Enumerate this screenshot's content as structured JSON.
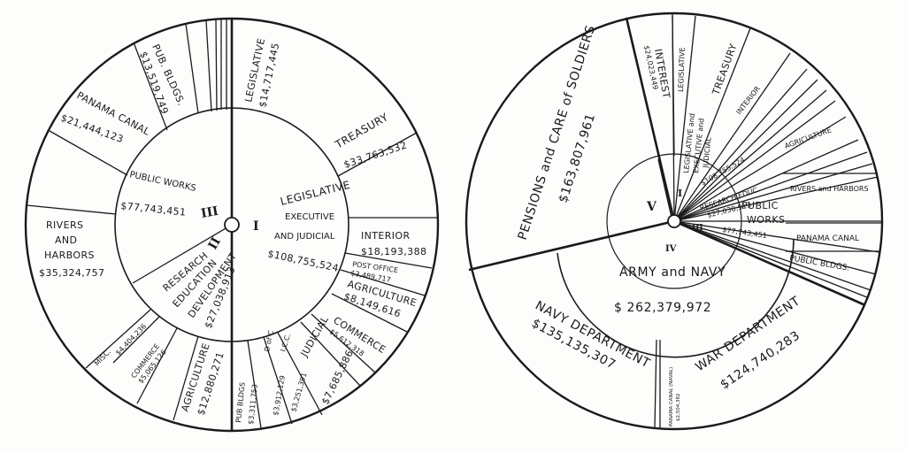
{
  "chart_data": [
    {
      "type": "pie",
      "categories": {
        "I": {
          "roman": "I",
          "title_lines": [
            "LEGISLATIVE",
            "EXECUTIVE",
            "AND JUDICIAL"
          ],
          "amount": "$108,755,524",
          "items": [
            {
              "label": "LEGISLATIVE",
              "amount": "$14,717,445"
            },
            {
              "label": "TREASURY",
              "amount": "$33,763,532"
            },
            {
              "label": "INTERIOR",
              "amount": "$18,193,388"
            },
            {
              "label": "POST OFFICE",
              "amount": "$3,489,717"
            },
            {
              "label": "AGRICULTURE",
              "amount": "$8,149,616"
            },
            {
              "label": "COMMERCE",
              "amount": "$5,612,318"
            },
            {
              "label": "JUDICIAL",
              "amount": "$7,685,886"
            },
            {
              "label": "I.C.C.",
              "amount": "$3,251,391"
            },
            {
              "label": "D of C",
              "amount": "$3,912,129"
            }
          ]
        },
        "II": {
          "roman": "II",
          "title_lines": [
            "RESEARCH",
            "EDUCATION",
            "DEVELOPMENT"
          ],
          "amount": "$27,038,913",
          "items": [
            {
              "label": "PUB BLDGS",
              "amount": "$3,311,753"
            },
            {
              "label": "AGRICULTURE",
              "amount": "$12,880,271"
            },
            {
              "label": "COMMERCE",
              "amount": "$5,065,126"
            },
            {
              "label": "MISC.",
              "amount": "$4,404,236"
            }
          ]
        },
        "III": {
          "roman": "III",
          "title_lines": [
            "PUBLIC WORKS"
          ],
          "amount": "$77,743,451",
          "items": [
            {
              "label": "RIVERS AND HARBORS",
              "amount": "$35,324,757"
            },
            {
              "label": "PANAMA CANAL",
              "amount": "$21,444,123"
            },
            {
              "label": "PUB. BLDGS.",
              "amount": "$13,519,749"
            }
          ]
        }
      },
      "right": {
        "pensions": {
          "line1": "PENSIONS and CARE of SOLDIERS",
          "amount": "$163,807,961",
          "roman": "V"
        },
        "interest": {
          "label": "INTEREST",
          "amount": "$24,023,449"
        },
        "army_navy": {
          "roman": "IV",
          "label": "ARMY and NAVY",
          "amount": "$ 262,379,972"
        },
        "navy": {
          "label": "NAVY DEPARTMENT",
          "amount": "$135,135,307"
        },
        "war": {
          "label": "WAR DEPARTMENT",
          "amount": "$124,740,283"
        },
        "naval_misc": {
          "label": "PANAMA CANAL (NAVAL)",
          "amount": "$2,504,382"
        },
        "legislative": {
          "label": "LEGISLATIVE"
        },
        "treasury": {
          "label": "TREASURY"
        },
        "interior": {
          "label": "INTERIOR"
        },
        "agriculture": {
          "label": "AGRICULTURE"
        },
        "legis_exec": {
          "roman": "I",
          "label_lines": [
            "LEGISLATIVE and",
            "EXECUTIVE and",
            "JUDICIAL"
          ],
          "amount": "$108,755,524"
        },
        "research": {
          "roman": "II",
          "label": "RESEARCH EDUC.",
          "amount": "$27,038,913"
        },
        "public_works": {
          "roman": "III",
          "label_lines": [
            "PUBLIC",
            "WORKS"
          ],
          "amount": "$77,743,451"
        },
        "rivers": {
          "label": "RIVERS and HARBORS"
        },
        "panama": {
          "label": "PANAMA CANAL"
        },
        "pub_bldgs": {
          "label": "PUBLIC BLDGS."
        }
      }
    }
  ]
}
